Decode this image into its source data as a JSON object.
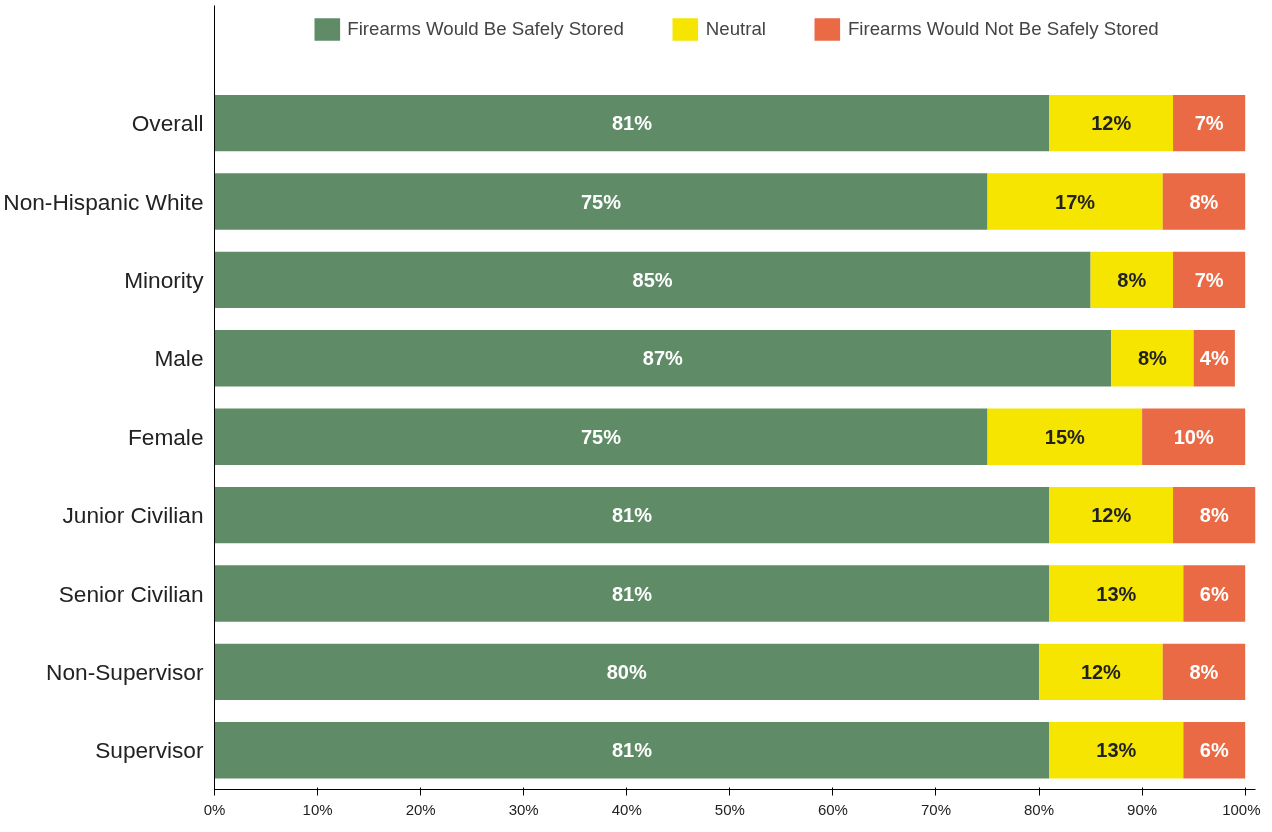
{
  "chart_data": {
    "type": "bar",
    "orientation": "horizontal",
    "stacked": true,
    "categories": [
      "Overall",
      "Non-Hispanic White",
      "Minority",
      "Male",
      "Female",
      "Junior Civilian",
      "Senior Civilian",
      "Non-Supervisor",
      "Supervisor"
    ],
    "series": [
      {
        "name": "Firearms Would Be Safely Stored",
        "color": "#5f8c67",
        "values": [
          81,
          75,
          85,
          87,
          75,
          81,
          81,
          80,
          81
        ],
        "value_labels": [
          "81%",
          "75%",
          "85%",
          "87%",
          "75%",
          "81%",
          "81%",
          "80%",
          "81%"
        ]
      },
      {
        "name": "Neutral",
        "color": "#f5e500",
        "values": [
          12,
          17,
          8,
          8,
          15,
          12,
          13,
          12,
          13
        ],
        "value_labels": [
          "12%",
          "17%",
          "8%",
          "8%",
          "15%",
          "12%",
          "13%",
          "12%",
          "13%"
        ]
      },
      {
        "name": "Firearms Would Not Be Safely Stored",
        "color": "#e96a44",
        "values": [
          7,
          8,
          7,
          4,
          10,
          8,
          6,
          8,
          6
        ],
        "value_labels": [
          "7%",
          "8%",
          "7%",
          "4%",
          "10%",
          "8%",
          "6%",
          "8%",
          "6%"
        ]
      }
    ],
    "xlim": [
      0,
      101
    ],
    "xticks": [
      {
        "value": 0,
        "label": "0%"
      },
      {
        "value": 10,
        "label": "10%"
      },
      {
        "value": 20,
        "label": "20%"
      },
      {
        "value": 30,
        "label": "30%"
      },
      {
        "value": 40,
        "label": "40%"
      },
      {
        "value": 50,
        "label": "50%"
      },
      {
        "value": 60,
        "label": "60%"
      },
      {
        "value": 70,
        "label": "70%"
      },
      {
        "value": 80,
        "label": "80%"
      },
      {
        "value": 90,
        "label": "90%"
      },
      {
        "value": 100,
        "label": "100%"
      }
    ],
    "grid": false,
    "legend": "top"
  }
}
